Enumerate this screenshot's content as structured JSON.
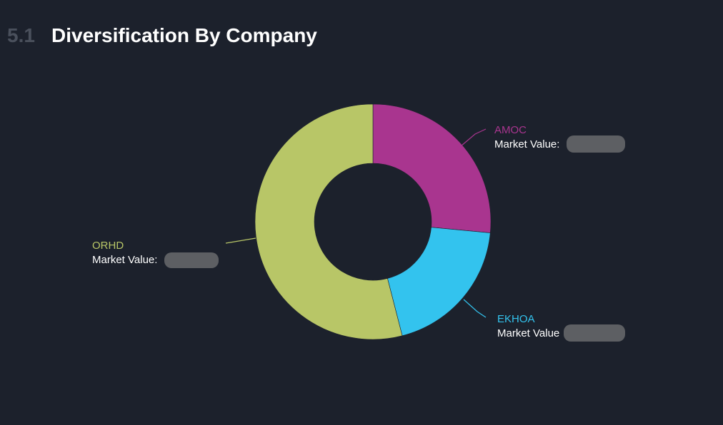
{
  "header": {
    "section_number": "5.1",
    "title": "Diversification By Company"
  },
  "chart_data": {
    "type": "pie",
    "variant": "donut",
    "title": "Diversification By Company",
    "label_prefixes": [
      "Market Value:",
      "Market Value"
    ],
    "slices": [
      {
        "name": "AMOC",
        "share": 0.265,
        "color": "#a9358f",
        "value_label_prefix": "Market Value:"
      },
      {
        "name": "EKHOA",
        "share": 0.195,
        "color": "#33c3ee",
        "value_label_prefix": "Market Value"
      },
      {
        "name": "ORHD",
        "share": 0.54,
        "color": "#b8c667",
        "value_label_prefix": "Market Value:"
      }
    ]
  }
}
